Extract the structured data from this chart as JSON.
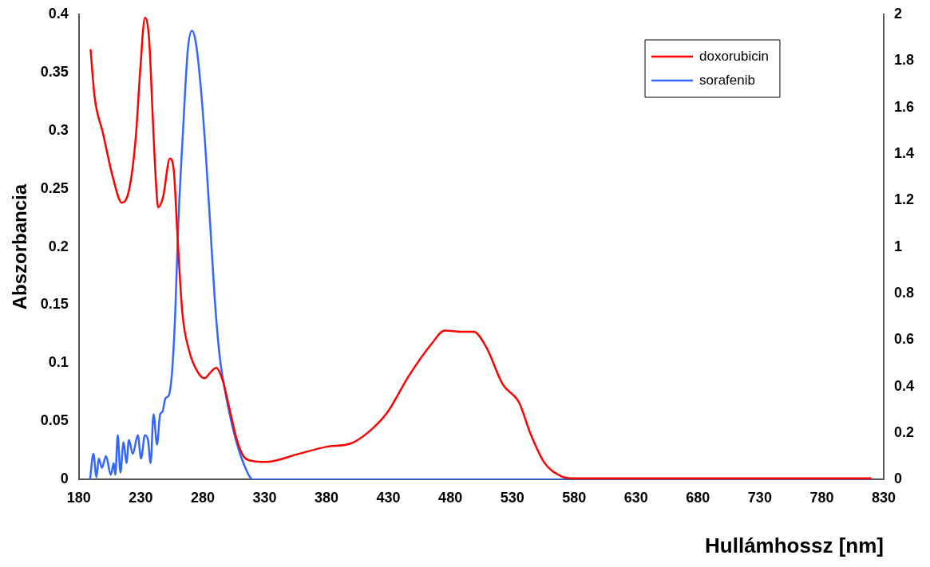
{
  "chart_data": {
    "type": "line",
    "ylabel": "Abszorbancia",
    "xlabel": "Hullámhossz [nm]",
    "xlim": [
      180,
      830
    ],
    "xticks": [
      180,
      230,
      280,
      330,
      380,
      430,
      480,
      530,
      580,
      630,
      680,
      730,
      780,
      830
    ],
    "ylim": [
      0,
      0.4
    ],
    "yticks": [
      0,
      0.05,
      0.1,
      0.15,
      0.2,
      0.25,
      0.3,
      0.35,
      0.4
    ],
    "y2lim": [
      0,
      2
    ],
    "y2ticks": [
      0,
      0.2,
      0.4,
      0.6,
      0.8,
      1,
      1.2,
      1.4,
      1.6,
      1.8,
      2
    ],
    "grid": false,
    "legend": "top right",
    "series": [
      {
        "name": "doxorubicin",
        "color": "#ff0000",
        "x": [
          189.4,
          192.7,
          199.4,
          207.4,
          214.7,
          220.7,
          226,
          229.4,
          233.4,
          236.8,
          239.5,
          242,
          244,
          248,
          253.5,
          256.8,
          259.5,
          263.5,
          269.5,
          276.2,
          281.5,
          286.2,
          290.9,
          296.2,
          301.6,
          307.6,
          312.9,
          319.6,
          330.8,
          357.5,
          379.7,
          399.8,
          413.1,
          428.7,
          446.5,
          464.4,
          475.5,
          488.8,
          498.8,
          508.9,
          522.2,
          535.6,
          544.5,
          555.6,
          569,
          577.9,
          600,
          655,
          700,
          760,
          820
        ],
        "values": [
          0.37,
          0.329,
          0.298,
          0.26,
          0.238,
          0.25,
          0.295,
          0.35,
          0.397,
          0.377,
          0.315,
          0.26,
          0.234,
          0.243,
          0.276,
          0.264,
          0.212,
          0.144,
          0.109,
          0.092,
          0.087,
          0.092,
          0.096,
          0.085,
          0.061,
          0.034,
          0.02,
          0.016,
          0.015,
          0.022,
          0.028,
          0.031,
          0.04,
          0.057,
          0.089,
          0.116,
          0.128,
          0.127,
          0.127,
          0.114,
          0.082,
          0.066,
          0.04,
          0.015,
          0.003,
          0.001,
          0.001,
          0.001,
          0.001,
          0.001,
          0.001
        ]
      },
      {
        "name": "sorafenib",
        "color": "#3366ff",
        "axis": "y2",
        "x": [
          189,
          191.7,
          194.2,
          196,
          198.6,
          201.9,
          205.8,
          208.1,
          209.4,
          211.4,
          213.5,
          216.1,
          218.4,
          220.4,
          223.5,
          227.6,
          230.2,
          233.3,
          235.8,
          237.9,
          240.3,
          243.1,
          245.6,
          247.4,
          250,
          252.5,
          255.2,
          257.7,
          260.3,
          264.1,
          268,
          271.3,
          274.4,
          278.2,
          282.1,
          286,
          289.8,
          293.7,
          298.8,
          305.3,
          312.9,
          320.6,
          330,
          820
        ],
        "values": [
          0,
          0.11,
          0.01,
          0.09,
          0.05,
          0.1,
          0.02,
          0.07,
          0.02,
          0.19,
          0.03,
          0.16,
          0.07,
          0.17,
          0.11,
          0.19,
          0.09,
          0.19,
          0.17,
          0.07,
          0.28,
          0.15,
          0.28,
          0.29,
          0.35,
          0.36,
          0.46,
          0.7,
          1.1,
          1.5,
          1.85,
          1.93,
          1.88,
          1.7,
          1.43,
          1.1,
          0.77,
          0.53,
          0.36,
          0.2,
          0.07,
          0,
          0,
          0
        ]
      }
    ]
  }
}
